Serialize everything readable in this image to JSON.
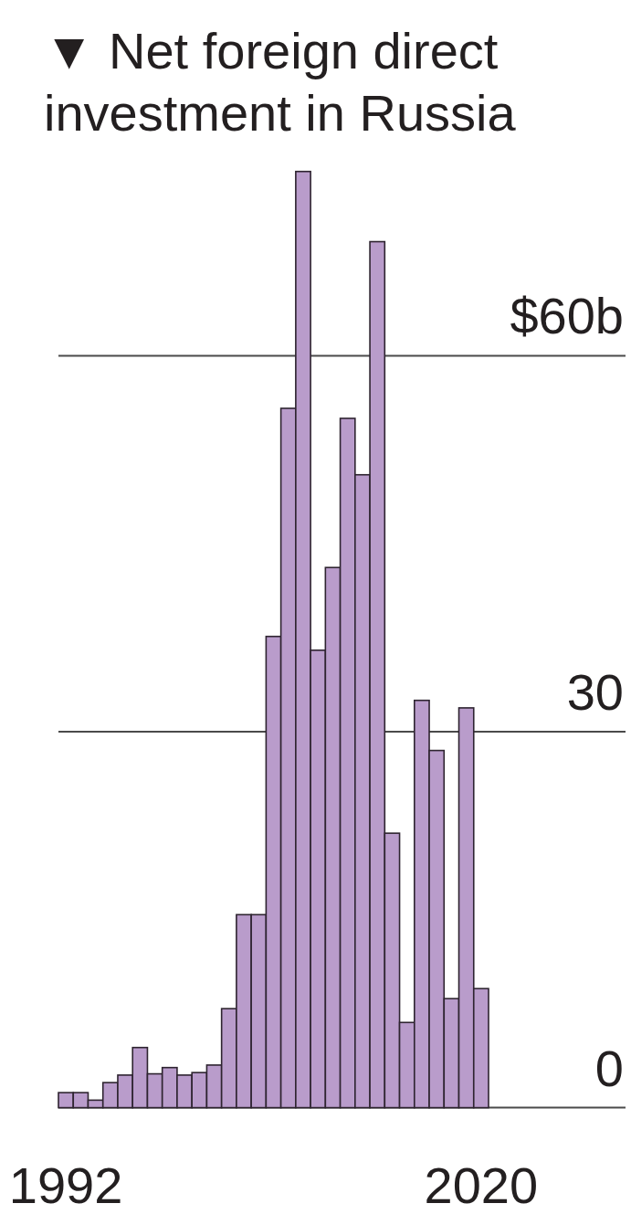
{
  "chart_data": {
    "type": "bar",
    "title": "▼ Net foreign direct investment in Russia",
    "categories": [
      "1992",
      null,
      null,
      null,
      null,
      null,
      null,
      null,
      null,
      null,
      null,
      null,
      null,
      null,
      null,
      null,
      null,
      null,
      null,
      null,
      null,
      null,
      null,
      null,
      null,
      null,
      null,
      null,
      "2020"
    ],
    "values": [
      1.2,
      1.2,
      0.6,
      2.0,
      2.6,
      4.8,
      2.7,
      3.2,
      2.6,
      2.8,
      3.4,
      7.9,
      15.4,
      15.4,
      37.6,
      55.8,
      74.7,
      36.5,
      43.1,
      55.0,
      50.5,
      69.1,
      21.9,
      6.8,
      32.5,
      28.5,
      8.7,
      31.9,
      9.5
    ],
    "color": "#b99ccb",
    "ylim": [
      0,
      75
    ],
    "yticks": [
      0,
      30,
      {
        "value": 60,
        "label": "$60b"
      }
    ],
    "grid": "y"
  }
}
